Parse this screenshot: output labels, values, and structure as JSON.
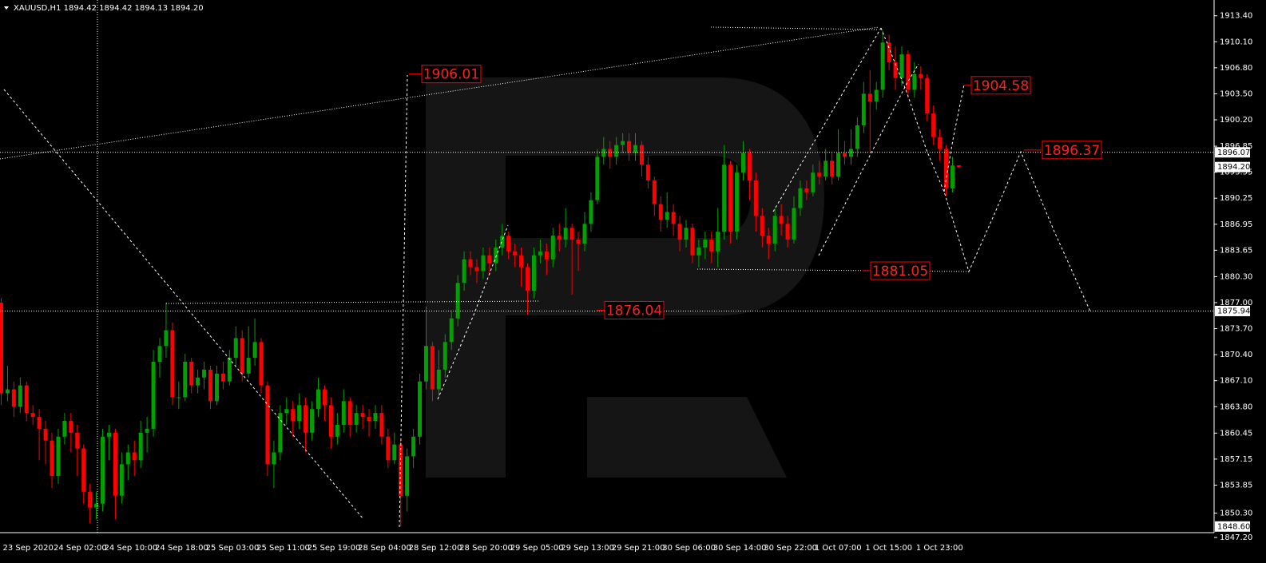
{
  "header": "XAUUSD,H1  1894.42 1894.42 1894.13 1894.20",
  "chart_data": {
    "type": "candlestick",
    "categories": [
      "23 Sep 2020",
      null,
      null,
      null,
      null,
      null,
      null,
      null,
      "24 Sep 02:00",
      null,
      null,
      null,
      null,
      null,
      null,
      null,
      "24 Sep 10:00",
      null,
      null,
      null,
      null,
      null,
      null,
      null,
      "24 Sep 18:00",
      null,
      null,
      null,
      null,
      null,
      null,
      null,
      "25 Sep 03:00",
      null,
      null,
      null,
      null,
      null,
      null,
      null,
      "25 Sep 11:00",
      null,
      null,
      null,
      null,
      null,
      null,
      null,
      "25 Sep 19:00",
      null,
      null,
      null,
      null,
      null,
      null,
      null,
      "28 Sep 04:00",
      null,
      null,
      null,
      null,
      null,
      null,
      null,
      "28 Sep 12:00",
      null,
      null,
      null,
      null,
      null,
      null,
      null,
      "28 Sep 20:00",
      null,
      null,
      null,
      null,
      null,
      null,
      null,
      "29 Sep 05:00",
      null,
      null,
      null,
      null,
      null,
      null,
      null,
      "29 Sep 13:00",
      null,
      null,
      null,
      null,
      null,
      null,
      null,
      "29 Sep 21:00",
      null,
      null,
      null,
      null,
      null,
      null,
      null,
      "30 Sep 06:00",
      null,
      null,
      null,
      null,
      null,
      null,
      null,
      "30 Sep 14:00",
      null,
      null,
      null,
      null,
      null,
      null,
      null,
      "30 Sep 22:00",
      null,
      null,
      null,
      null,
      null,
      null,
      null,
      "1 Oct 07:00",
      null,
      null,
      null,
      null,
      null,
      null,
      null,
      "1 Oct 15:00",
      null,
      null,
      null,
      null,
      null,
      null,
      null,
      "1 Oct 23:00",
      null,
      null,
      null,
      null,
      null,
      null,
      null
    ],
    "open": [
      1877.0,
      1865.5,
      1866.0,
      1863.8,
      1866.5,
      1863.0,
      1862.5,
      1861.0,
      1859.5,
      1855.0,
      1860.0,
      1862.0,
      1860.5,
      1858.5,
      1853.0,
      1851.0,
      1851.5,
      1860.0,
      1860.5,
      1852.5,
      1856.5,
      1858.0,
      1857.0,
      1860.5,
      1861.0,
      1869.5,
      1871.5,
      1873.5,
      1865.0,
      1865.0,
      1869.5,
      1866.5,
      1867.5,
      1868.5,
      1864.5,
      1868.0,
      1867.0,
      1870.0,
      1872.5,
      1868.0,
      1870.0,
      1872.0,
      1866.5,
      1856.5,
      1858.0,
      1863.0,
      1863.5,
      1862.0,
      1864.0,
      1860.5,
      1863.5,
      1866.0,
      1864.0,
      1860.0,
      1861.5,
      1864.5,
      1861.5,
      1863.0,
      1862.5,
      1862.0,
      1863.0,
      1860.0,
      1857.0,
      1859.0,
      1852.5,
      1857.5,
      1860.0,
      1867.0,
      1871.5,
      1866.0,
      1868.5,
      1872.0,
      1875.0,
      1879.5,
      1882.5,
      1881.5,
      1881.0,
      1883.0,
      1882.0,
      1884.0,
      1885.5,
      1883.5,
      1883.0,
      1881.5,
      1878.5,
      1883.0,
      1883.5,
      1882.5,
      1885.5,
      1885.0,
      1886.5,
      1885.0,
      1884.5,
      1887.0,
      1890.0,
      1895.5,
      1896.5,
      1895.5,
      1897.0,
      1897.5,
      1896.0,
      1897.0,
      1894.5,
      1892.5,
      1889.5,
      1887.5,
      1888.5,
      1887.0,
      1885.0,
      1886.5,
      1883.0,
      1884.0,
      1885.0,
      1883.5,
      1886.0,
      1894.5,
      1886.0,
      1893.5,
      1896.0,
      1892.5,
      1888.0,
      1885.5,
      1884.5,
      1888.0,
      1887.0,
      1885.0,
      1889.0,
      1891.5,
      1891.0,
      1893.5,
      1893.0,
      1895.0,
      1893.0,
      1896.0,
      1895.5,
      1896.5,
      1899.5,
      1903.5,
      1902.5,
      1904.0,
      1910.0,
      1907.5,
      1905.5,
      1908.5,
      1904.0,
      1906.0,
      1905.5,
      1901.0,
      1898.0,
      1896.5,
      1891.5,
      1894.42
    ],
    "high": [
      1877.6,
      1869.0,
      1867.0,
      1867.5,
      1867.0,
      1864.0,
      1863.5,
      1862.0,
      1860.5,
      1861.0,
      1863.0,
      1863.0,
      1861.5,
      1859.0,
      1854.0,
      1853.0,
      1861.0,
      1861.5,
      1861.0,
      1858.0,
      1859.0,
      1859.5,
      1862.0,
      1862.5,
      1871.0,
      1872.5,
      1877.0,
      1874.5,
      1867.0,
      1870.5,
      1870.0,
      1868.5,
      1869.5,
      1869.0,
      1869.0,
      1869.5,
      1871.0,
      1874.0,
      1873.5,
      1874.0,
      1875.0,
      1872.5,
      1867.0,
      1859.5,
      1864.0,
      1865.0,
      1864.5,
      1865.5,
      1865.0,
      1864.5,
      1867.5,
      1866.5,
      1865.0,
      1863.0,
      1866.0,
      1865.0,
      1864.0,
      1864.0,
      1863.5,
      1864.0,
      1864.0,
      1861.0,
      1860.5,
      1859.5,
      1858.5,
      1861.0,
      1868.0,
      1876.5,
      1872.0,
      1871.0,
      1873.0,
      1876.0,
      1880.5,
      1883.5,
      1883.5,
      1882.5,
      1884.0,
      1884.0,
      1885.0,
      1887.0,
      1886.0,
      1884.5,
      1884.0,
      1882.0,
      1884.0,
      1885.0,
      1884.5,
      1886.5,
      1887.0,
      1889.0,
      1887.0,
      1886.0,
      1888.5,
      1891.0,
      1896.5,
      1898.0,
      1897.5,
      1898.0,
      1898.5,
      1898.5,
      1898.5,
      1897.5,
      1895.5,
      1893.0,
      1890.5,
      1891.0,
      1889.5,
      1888.0,
      1887.5,
      1887.0,
      1885.0,
      1886.0,
      1886.0,
      1889.0,
      1897.0,
      1895.0,
      1894.5,
      1897.5,
      1896.5,
      1893.5,
      1889.0,
      1886.5,
      1889.0,
      1889.5,
      1888.0,
      1890.5,
      1892.5,
      1892.5,
      1894.5,
      1895.0,
      1896.5,
      1896.0,
      1899.0,
      1897.5,
      1899.0,
      1900.5,
      1905.0,
      1906.5,
      1905.0,
      1911.5,
      1911.0,
      1909.5,
      1909.5,
      1909.0,
      1907.5,
      1907.0,
      1906.0,
      1902.0,
      1899.0,
      1897.0,
      1895.5,
      1894.42
    ],
    "low": [
      1864.0,
      1864.5,
      1862.5,
      1863.0,
      1862.0,
      1861.5,
      1857.0,
      1856.5,
      1853.5,
      1854.0,
      1859.0,
      1858.0,
      1855.0,
      1851.5,
      1849.0,
      1849.5,
      1850.5,
      1857.0,
      1849.5,
      1851.5,
      1854.5,
      1855.0,
      1856.0,
      1858.0,
      1860.0,
      1867.5,
      1870.0,
      1864.0,
      1863.5,
      1864.5,
      1865.5,
      1865.5,
      1866.0,
      1863.5,
      1864.0,
      1866.0,
      1866.5,
      1869.0,
      1867.0,
      1867.5,
      1869.0,
      1865.5,
      1855.0,
      1853.5,
      1857.0,
      1861.5,
      1860.0,
      1861.0,
      1858.0,
      1859.5,
      1862.5,
      1862.0,
      1858.5,
      1859.0,
      1860.5,
      1860.0,
      1860.5,
      1861.0,
      1860.0,
      1861.0,
      1859.0,
      1856.0,
      1856.5,
      1848.6,
      1850.5,
      1856.0,
      1859.0,
      1866.0,
      1864.5,
      1865.0,
      1867.5,
      1871.0,
      1874.0,
      1878.5,
      1880.5,
      1879.5,
      1880.0,
      1880.5,
      1881.0,
      1883.0,
      1882.5,
      1881.5,
      1879.0,
      1875.5,
      1877.5,
      1882.0,
      1880.5,
      1881.5,
      1883.5,
      1884.0,
      1878.0,
      1881.0,
      1883.5,
      1886.0,
      1889.5,
      1894.5,
      1894.0,
      1894.5,
      1896.0,
      1895.0,
      1895.0,
      1893.0,
      1891.5,
      1888.0,
      1886.0,
      1886.5,
      1885.5,
      1883.5,
      1884.0,
      1882.0,
      1881.5,
      1882.5,
      1882.0,
      1881.5,
      1885.0,
      1884.5,
      1885.0,
      1892.5,
      1890.0,
      1886.0,
      1884.0,
      1882.5,
      1883.5,
      1885.5,
      1884.0,
      1884.5,
      1888.0,
      1890.0,
      1890.5,
      1892.0,
      1892.5,
      1892.0,
      1892.5,
      1894.5,
      1894.5,
      1895.5,
      1898.5,
      1896.0,
      1901.5,
      1903.0,
      1906.5,
      1904.0,
      1904.5,
      1903.0,
      1903.0,
      1904.0,
      1900.0,
      1897.0,
      1895.0,
      1890.5,
      1891.0,
      1894.13
    ],
    "close": [
      1865.5,
      1866.0,
      1863.8,
      1866.5,
      1863.0,
      1862.5,
      1861.0,
      1859.5,
      1855.0,
      1860.0,
      1862.0,
      1860.5,
      1858.5,
      1853.0,
      1851.0,
      1851.5,
      1860.0,
      1860.5,
      1852.5,
      1856.5,
      1858.0,
      1857.0,
      1860.5,
      1861.0,
      1869.5,
      1871.5,
      1873.5,
      1865.0,
      1865.0,
      1869.5,
      1866.5,
      1867.5,
      1868.5,
      1864.5,
      1868.0,
      1867.0,
      1870.0,
      1872.5,
      1868.0,
      1870.0,
      1872.0,
      1866.5,
      1856.5,
      1858.0,
      1863.0,
      1863.5,
      1862.0,
      1864.0,
      1860.5,
      1863.5,
      1866.0,
      1864.0,
      1860.0,
      1861.5,
      1864.5,
      1861.5,
      1863.0,
      1862.5,
      1862.0,
      1863.0,
      1860.0,
      1857.0,
      1859.0,
      1852.5,
      1857.5,
      1860.0,
      1867.0,
      1871.5,
      1866.0,
      1868.5,
      1872.0,
      1875.0,
      1879.5,
      1882.5,
      1881.5,
      1881.0,
      1883.0,
      1882.0,
      1884.0,
      1885.5,
      1883.5,
      1883.0,
      1881.5,
      1878.5,
      1883.0,
      1883.5,
      1882.5,
      1885.5,
      1885.0,
      1886.5,
      1885.0,
      1884.5,
      1887.0,
      1890.0,
      1895.5,
      1896.5,
      1895.5,
      1897.0,
      1897.5,
      1896.0,
      1897.0,
      1894.5,
      1892.5,
      1889.5,
      1887.5,
      1888.5,
      1887.0,
      1885.0,
      1886.5,
      1883.0,
      1884.0,
      1885.0,
      1883.5,
      1886.0,
      1894.5,
      1886.0,
      1893.5,
      1896.0,
      1892.5,
      1888.0,
      1885.5,
      1884.5,
      1888.0,
      1887.0,
      1885.0,
      1889.0,
      1891.5,
      1891.0,
      1893.5,
      1893.0,
      1895.0,
      1893.0,
      1896.0,
      1895.5,
      1896.5,
      1899.5,
      1903.5,
      1902.5,
      1904.0,
      1910.0,
      1907.5,
      1905.5,
      1908.5,
      1904.0,
      1906.0,
      1905.5,
      1901.0,
      1898.0,
      1896.5,
      1891.5,
      1894.4,
      1894.2
    ],
    "up_color": "#00a000",
    "down_color": "#ff0000",
    "ylim": [
      1846.5,
      1915.4
    ],
    "yticks": [
      {
        "value": 1913.4,
        "label": "1913.40"
      },
      {
        "value": 1910.1,
        "label": "1910.10"
      },
      {
        "value": 1906.8,
        "label": "1906.80"
      },
      {
        "value": 1903.5,
        "label": "1903.50"
      },
      {
        "value": 1900.2,
        "label": "1900.20"
      },
      {
        "value": 1896.85,
        "label": "1896.85"
      },
      {
        "value": 1893.55,
        "label": "1893.55"
      },
      {
        "value": 1890.25,
        "label": "1890.25"
      },
      {
        "value": 1886.95,
        "label": "1886.95"
      },
      {
        "value": 1883.65,
        "label": "1883.65"
      },
      {
        "value": 1880.3,
        "label": "1880.30"
      },
      {
        "value": 1877.0,
        "label": "1877.00"
      },
      {
        "value": 1873.7,
        "label": "1873.70"
      },
      {
        "value": 1870.4,
        "label": "1870.40"
      },
      {
        "value": 1867.1,
        "label": "1867.10"
      },
      {
        "value": 1863.8,
        "label": "1863.80"
      },
      {
        "value": 1860.45,
        "label": "1860.45"
      },
      {
        "value": 1857.15,
        "label": "1857.15"
      },
      {
        "value": 1853.85,
        "label": "1853.85"
      },
      {
        "value": 1850.3,
        "label": "1850.30"
      },
      {
        "value": 1847.2,
        "label": "1847.20"
      }
    ],
    "price_tags": [
      {
        "value": 1896.07,
        "label": "1896.07"
      },
      {
        "value": 1894.2,
        "label": "1894.20"
      },
      {
        "value": 1875.94,
        "label": "1875.94"
      },
      {
        "value": 1848.6,
        "label": "1848.60"
      }
    ],
    "levels": [
      {
        "value": 1906.01,
        "label": "1906.01"
      },
      {
        "value": 1904.58,
        "label": "1904.58"
      },
      {
        "value": 1896.37,
        "label": "1896.37"
      },
      {
        "value": 1881.05,
        "label": "1881.05"
      },
      {
        "value": 1876.04,
        "label": "1876.04"
      }
    ]
  }
}
